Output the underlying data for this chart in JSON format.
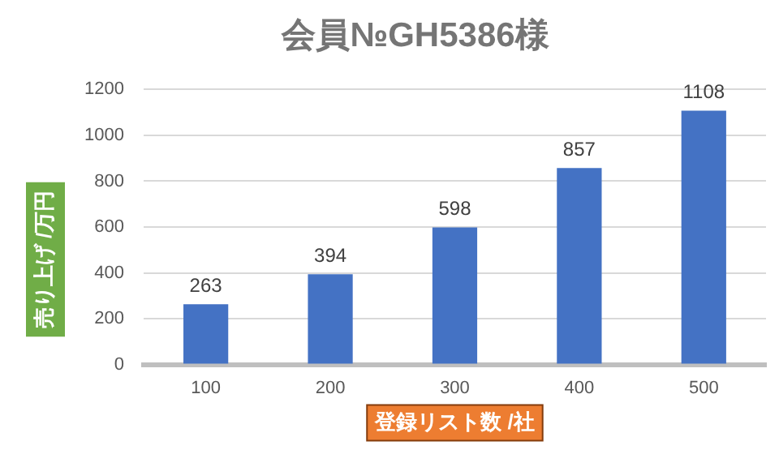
{
  "chart_data": {
    "type": "bar",
    "title": "会員№GH5386様",
    "xlabel": "登録リスト数 /社",
    "ylabel": "売り上げ /万円",
    "categories": [
      "100",
      "200",
      "300",
      "400",
      "500"
    ],
    "values": [
      263,
      394,
      598,
      857,
      1108
    ],
    "color": "#4472c4",
    "ylim": [
      0,
      1200
    ],
    "yticks": [
      0,
      200,
      400,
      600,
      800,
      1000,
      1200
    ],
    "grid": "y",
    "data_labels": true,
    "legend": false
  }
}
